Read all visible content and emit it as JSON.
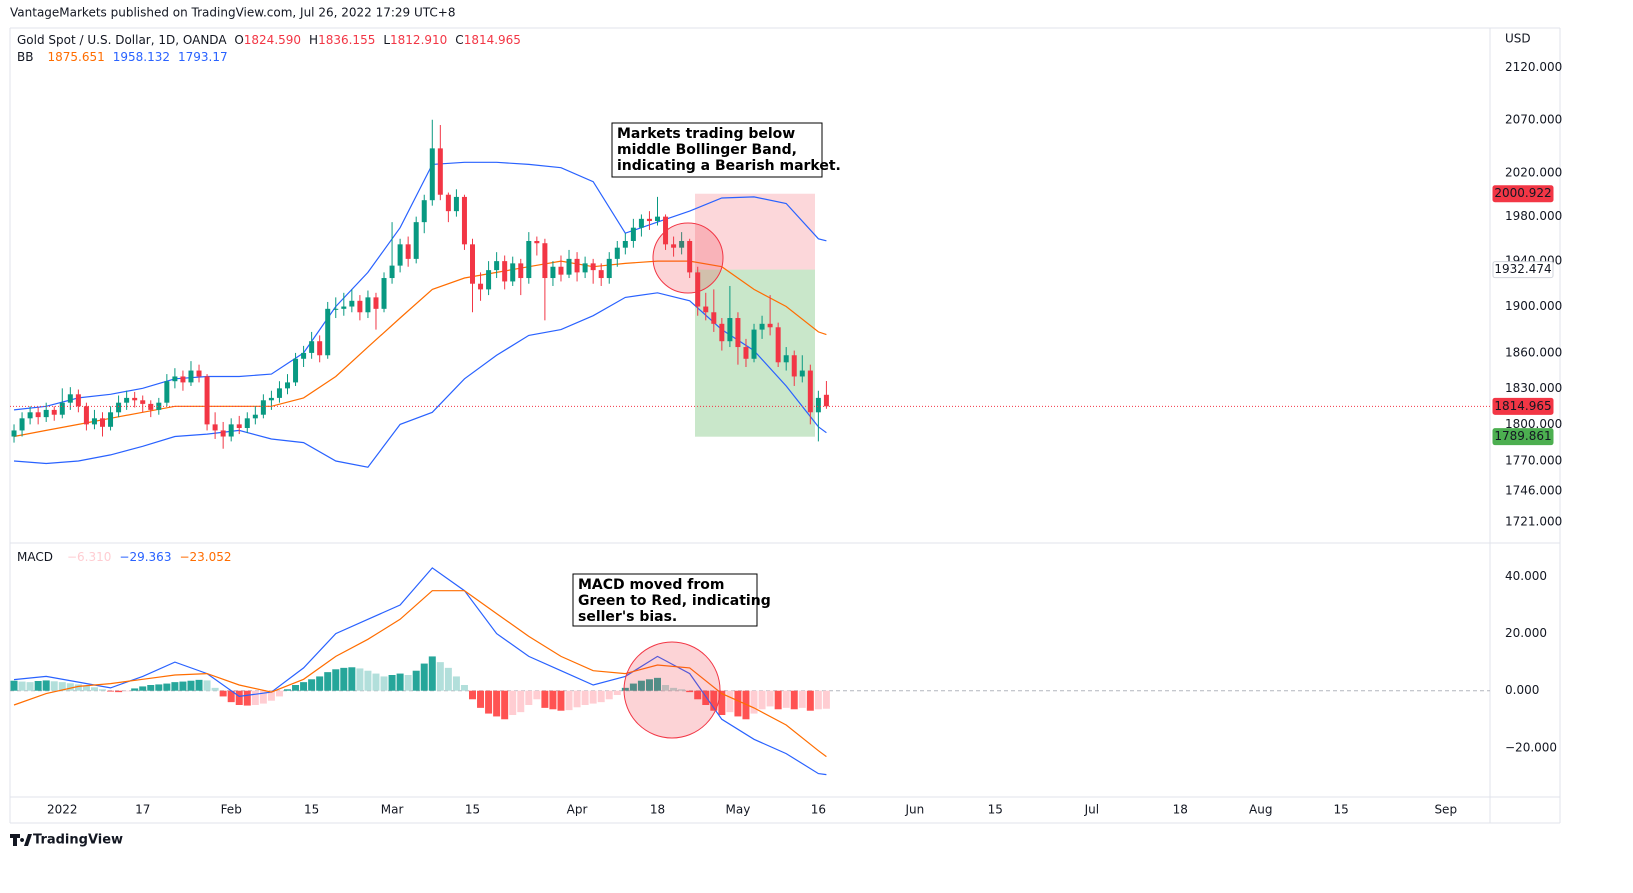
{
  "header": {
    "published": "VantageMarkets published on TradingView.com, Jul 26, 2022 17:29 UTC+8"
  },
  "footer": {
    "brand": "TradingView"
  },
  "chart_data": [
    {
      "type": "candlestick",
      "title": "Gold Spot / U.S. Dollar, 1D, OANDA",
      "currency": "USD",
      "ohlc_prefixes": [
        "O",
        "H",
        "L",
        "C"
      ],
      "ohlc_labels": [
        "1824.590",
        "1836.155",
        "1812.910",
        "1814.965"
      ],
      "up_color": "#089981",
      "down_color": "#f23645",
      "log": true,
      "ylim": [
        1707,
        2159
      ],
      "yticks": [
        {
          "value": 2120,
          "label": "2120.000"
        },
        {
          "value": 2070,
          "label": "2070.000"
        },
        {
          "value": 2020,
          "label": "2020.000"
        },
        {
          "value": 1980,
          "label": "1980.000"
        },
        {
          "value": 1940,
          "label": "1940.000"
        },
        {
          "value": 1900,
          "label": "1900.000"
        },
        {
          "value": 1860,
          "label": "1860.000"
        },
        {
          "value": 1830,
          "label": "1830.000"
        },
        {
          "value": 1800,
          "label": "1800.000"
        },
        {
          "value": 1770,
          "label": "1770.000"
        },
        {
          "value": 1746,
          "label": "1746.000"
        },
        {
          "value": 1721,
          "label": "1721.000"
        }
      ],
      "candles": [
        [
          1790,
          1800,
          1785,
          1795
        ],
        [
          1795,
          1810,
          1790,
          1805
        ],
        [
          1805,
          1815,
          1800,
          1810
        ],
        [
          1810,
          1814,
          1800,
          1806
        ],
        [
          1806,
          1818,
          1802,
          1812
        ],
        [
          1812,
          1815,
          1803,
          1808
        ],
        [
          1808,
          1830,
          1805,
          1818
        ],
        [
          1818,
          1831,
          1812,
          1825
        ],
        [
          1825,
          1829,
          1810,
          1815
        ],
        [
          1815,
          1818,
          1795,
          1800
        ],
        [
          1800,
          1812,
          1796,
          1805
        ],
        [
          1805,
          1810,
          1790,
          1798
        ],
        [
          1798,
          1815,
          1795,
          1810
        ],
        [
          1810,
          1824,
          1806,
          1818
        ],
        [
          1818,
          1828,
          1812,
          1822
        ],
        [
          1822,
          1827,
          1814,
          1820
        ],
        [
          1820,
          1824,
          1810,
          1817
        ],
        [
          1817,
          1820,
          1806,
          1812
        ],
        [
          1812,
          1822,
          1808,
          1818
        ],
        [
          1818,
          1842,
          1815,
          1836
        ],
        [
          1836,
          1847,
          1830,
          1840
        ],
        [
          1840,
          1845,
          1828,
          1835
        ],
        [
          1835,
          1853,
          1832,
          1845
        ],
        [
          1845,
          1850,
          1835,
          1840
        ],
        [
          1840,
          1842,
          1795,
          1800
        ],
        [
          1800,
          1810,
          1788,
          1795
        ],
        [
          1795,
          1802,
          1780,
          1790
        ],
        [
          1790,
          1805,
          1786,
          1800
        ],
        [
          1800,
          1807,
          1792,
          1797
        ],
        [
          1797,
          1810,
          1793,
          1805
        ],
        [
          1805,
          1815,
          1800,
          1808
        ],
        [
          1808,
          1825,
          1805,
          1820
        ],
        [
          1820,
          1828,
          1812,
          1822
        ],
        [
          1822,
          1836,
          1818,
          1830
        ],
        [
          1830,
          1842,
          1825,
          1835
        ],
        [
          1835,
          1860,
          1832,
          1855
        ],
        [
          1855,
          1866,
          1848,
          1860
        ],
        [
          1860,
          1878,
          1855,
          1870
        ],
        [
          1870,
          1875,
          1852,
          1858
        ],
        [
          1858,
          1904,
          1855,
          1898
        ],
        [
          1898,
          1908,
          1890,
          1898
        ],
        [
          1898,
          1912,
          1892,
          1900
        ],
        [
          1900,
          1915,
          1895,
          1905
        ],
        [
          1905,
          1910,
          1888,
          1895
        ],
        [
          1895,
          1914,
          1890,
          1908
        ],
        [
          1908,
          1912,
          1880,
          1898
        ],
        [
          1898,
          1930,
          1895,
          1925
        ],
        [
          1925,
          1975,
          1920,
          1936
        ],
        [
          1936,
          1960,
          1930,
          1955
        ],
        [
          1955,
          1962,
          1935,
          1942
        ],
        [
          1942,
          1980,
          1938,
          1975
        ],
        [
          1975,
          2000,
          1965,
          1995
        ],
        [
          1995,
          2070,
          1990,
          2043
        ],
        [
          2043,
          2065,
          1995,
          2000
        ],
        [
          2000,
          2002,
          1975,
          1985
        ],
        [
          1985,
          2005,
          1980,
          1998
        ],
        [
          1998,
          2000,
          1950,
          1955
        ],
        [
          1955,
          1960,
          1895,
          1920
        ],
        [
          1920,
          1930,
          1905,
          1915
        ],
        [
          1915,
          1940,
          1910,
          1932
        ],
        [
          1932,
          1948,
          1925,
          1940
        ],
        [
          1940,
          1945,
          1915,
          1922
        ],
        [
          1922,
          1944,
          1918,
          1938
        ],
        [
          1938,
          1942,
          1910,
          1925
        ],
        [
          1925,
          1966,
          1920,
          1958
        ],
        [
          1958,
          1962,
          1945,
          1956
        ],
        [
          1956,
          1960,
          1888,
          1925
        ],
        [
          1925,
          1940,
          1918,
          1935
        ],
        [
          1935,
          1945,
          1922,
          1928
        ],
        [
          1928,
          1950,
          1925,
          1942
        ],
        [
          1942,
          1948,
          1922,
          1930
        ],
        [
          1930,
          1944,
          1925,
          1938
        ],
        [
          1938,
          1942,
          1920,
          1932
        ],
        [
          1932,
          1938,
          1918,
          1925
        ],
        [
          1925,
          1948,
          1920,
          1942
        ],
        [
          1942,
          1958,
          1935,
          1952
        ],
        [
          1952,
          1965,
          1946,
          1958
        ],
        [
          1958,
          1978,
          1952,
          1970
        ],
        [
          1970,
          1982,
          1962,
          1978
        ],
        [
          1978,
          1985,
          1968,
          1976
        ],
        [
          1976,
          1998,
          1972,
          1980
        ],
        [
          1980,
          1982,
          1950,
          1955
        ],
        [
          1955,
          1962,
          1944,
          1952
        ],
        [
          1952,
          1966,
          1946,
          1958
        ],
        [
          1958,
          1960,
          1925,
          1930
        ],
        [
          1930,
          1935,
          1892,
          1900
        ],
        [
          1900,
          1912,
          1888,
          1895
        ],
        [
          1895,
          1915,
          1878,
          1885
        ],
        [
          1885,
          1890,
          1862,
          1870
        ],
        [
          1870,
          1918,
          1865,
          1890
        ],
        [
          1890,
          1895,
          1850,
          1865
        ],
        [
          1865,
          1872,
          1848,
          1855
        ],
        [
          1855,
          1885,
          1852,
          1880
        ],
        [
          1880,
          1892,
          1872,
          1885
        ],
        [
          1885,
          1910,
          1875,
          1882
        ],
        [
          1882,
          1886,
          1848,
          1852
        ],
        [
          1852,
          1865,
          1845,
          1858
        ],
        [
          1858,
          1862,
          1832,
          1840
        ],
        [
          1840,
          1858,
          1835,
          1845
        ],
        [
          1845,
          1850,
          1800,
          1810
        ],
        [
          1810,
          1828,
          1786,
          1822
        ],
        [
          1824.59,
          1836.155,
          1812.91,
          1814.965
        ]
      ],
      "bb": {
        "name": "BB",
        "x": [
          0,
          4,
          8,
          12,
          16,
          20,
          24,
          28,
          32,
          36,
          40,
          44,
          48,
          52,
          56,
          60,
          64,
          68,
          72,
          76,
          80,
          84,
          88,
          92,
          96,
          100,
          101
        ],
        "series": [
          {
            "color": "#ff6d00",
            "values": [
              1790,
              1795,
              1800,
              1805,
              1810,
              1815,
              1815,
              1815,
              1815,
              1822,
              1840,
              1865,
              1890,
              1915,
              1925,
              1930,
              1935,
              1940,
              1935,
              1938,
              1940,
              1940,
              1935,
              1915,
              1900,
              1878,
              1875.651
            ]
          },
          {
            "color": "#2962ff",
            "values": [
              1812,
              1815,
              1822,
              1825,
              1830,
              1838,
              1840,
              1840,
              1842,
              1860,
              1900,
              1930,
              1970,
              2028,
              2030,
              2030,
              2028,
              2025,
              2012,
              1965,
              1975,
              1985,
              1997,
              1998,
              1992,
              1960,
              1958.132
            ]
          },
          {
            "color": "#2962ff",
            "values": [
              1770,
              1768,
              1770,
              1775,
              1782,
              1790,
              1792,
              1795,
              1788,
              1785,
              1770,
              1765,
              1800,
              1810,
              1838,
              1858,
              1875,
              1880,
              1892,
              1908,
              1912,
              1905,
              1880,
              1862,
              1832,
              1798,
              1793.17
            ]
          }
        ]
      },
      "position": {
        "stop": 2000.922,
        "entry": 1932.474,
        "target": 1789.861,
        "stop_color": "#f23645",
        "entry_color": "#ffffff",
        "target_color": "#4caf50"
      },
      "annotation": [
        "Markets trading below",
        "middle Bollinger Band,",
        "indicating a Bearish market."
      ]
    },
    {
      "type": "macd",
      "title": "MACD",
      "xlim": [
        -0.5,
        183.5
      ],
      "xticks": [
        {
          "value": 6,
          "label": "2022"
        },
        {
          "value": 16,
          "label": "17"
        },
        {
          "value": 27,
          "label": "Feb"
        },
        {
          "value": 37,
          "label": "15"
        },
        {
          "value": 47,
          "label": "Mar"
        },
        {
          "value": 57,
          "label": "15"
        },
        {
          "value": 70,
          "label": "Apr"
        },
        {
          "value": 80,
          "label": "18"
        },
        {
          "value": 90,
          "label": "May"
        },
        {
          "value": 100,
          "label": "16"
        },
        {
          "value": 112,
          "label": "Jun"
        },
        {
          "value": 122,
          "label": "15"
        },
        {
          "value": 134,
          "label": "Jul"
        },
        {
          "value": 145,
          "label": "18"
        },
        {
          "value": 155,
          "label": "Aug"
        },
        {
          "value": 165,
          "label": "15"
        },
        {
          "value": 178,
          "label": "Sep"
        }
      ],
      "ylim": [
        -36.5,
        51
      ],
      "yticks": [
        {
          "value": 40,
          "label": "40.000"
        },
        {
          "value": 20,
          "label": "20.000"
        },
        {
          "value": 0,
          "label": "0.000"
        },
        {
          "value": -20,
          "label": "−20.000"
        }
      ],
      "zero_line": true,
      "histogram_colors": [
        "#26a69a",
        "#b2dfdb",
        "#ffcdd2",
        "#ff5252"
      ],
      "histogram": [
        3.5,
        3.2,
        3,
        3.4,
        3.6,
        3.3,
        3,
        2.6,
        2.2,
        1.8,
        1.2,
        0.5,
        -0.3,
        -0.5,
        -0.2,
        0.8,
        1.5,
        2,
        2.2,
        2.5,
        3,
        3.2,
        3.5,
        3.8,
        3.6,
        1,
        -2,
        -4,
        -5,
        -5.2,
        -5,
        -4.5,
        -3.5,
        -2,
        0.5,
        2,
        3,
        4,
        5,
        6.5,
        7.5,
        8,
        8.2,
        7.8,
        7,
        6,
        5,
        5.5,
        6,
        5.5,
        7,
        9.5,
        12,
        10,
        8,
        5,
        2,
        -3,
        -6,
        -8,
        -9,
        -10,
        -8.5,
        -7.5,
        -5,
        -3,
        -6,
        -6.5,
        -7,
        -6.8,
        -5.8,
        -5,
        -4.5,
        -4,
        -3,
        -1.5,
        1,
        2.5,
        3.5,
        4,
        4.5,
        2,
        1,
        0.5,
        -0.5,
        -3,
        -5,
        -7,
        -8.5,
        -7.5,
        -9,
        -10,
        -8,
        -6.5,
        -5.5,
        -6.5,
        -6,
        -6.5,
        -6,
        -7,
        -6.5,
        -6.31
      ],
      "x": [
        0,
        4,
        8,
        12,
        16,
        20,
        24,
        28,
        32,
        36,
        40,
        44,
        48,
        52,
        56,
        60,
        64,
        68,
        72,
        76,
        80,
        84,
        88,
        92,
        96,
        100,
        101
      ],
      "series": [
        {
          "color": "#2962ff",
          "values": [
            3.9,
            5,
            3,
            1,
            5,
            10,
            6,
            -2,
            -0.5,
            8,
            20,
            25,
            30,
            43,
            35,
            20,
            12,
            7,
            2,
            5,
            12,
            6,
            -10,
            -17,
            -22,
            -29,
            -29.363
          ]
        },
        {
          "color": "#ff6d00",
          "values": [
            -5,
            -1,
            1.5,
            2.5,
            4,
            5.5,
            6,
            2,
            -0.5,
            4,
            12,
            18,
            25,
            35,
            35,
            27,
            19,
            12,
            7,
            6,
            9,
            8,
            -1,
            -6,
            -12,
            -21,
            -23.052
          ]
        }
      ],
      "legend_labels": [
        "−6.310",
        "−29.363",
        "−23.052"
      ],
      "annotation": [
        "MACD moved from",
        "Green to Red, indicating",
        "seller's bias."
      ]
    }
  ]
}
